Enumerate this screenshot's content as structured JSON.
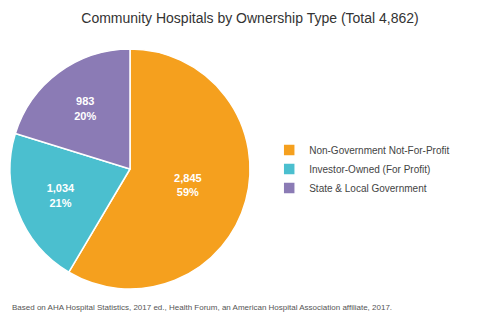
{
  "chart_data": {
    "type": "pie",
    "title": "Community Hospitals by Ownership Type (Total 4,862)",
    "categories": [
      "Non-Government Not-For-Profit",
      "Investor-Owned (For Profit)",
      "State & Local Government"
    ],
    "values": [
      2845,
      1034,
      983
    ],
    "value_labels": [
      "2,845\n59%",
      "1,034\n21%",
      "983\n20%"
    ],
    "colors": [
      "#F5A01E",
      "#4BBFCF",
      "#8B7BB5"
    ],
    "data_labels": true,
    "legend": "right",
    "footnote": "Based on AHA Hospital Statistics, 2017 ed., Health Forum, an American Hospital Association affiliate, 2017."
  }
}
